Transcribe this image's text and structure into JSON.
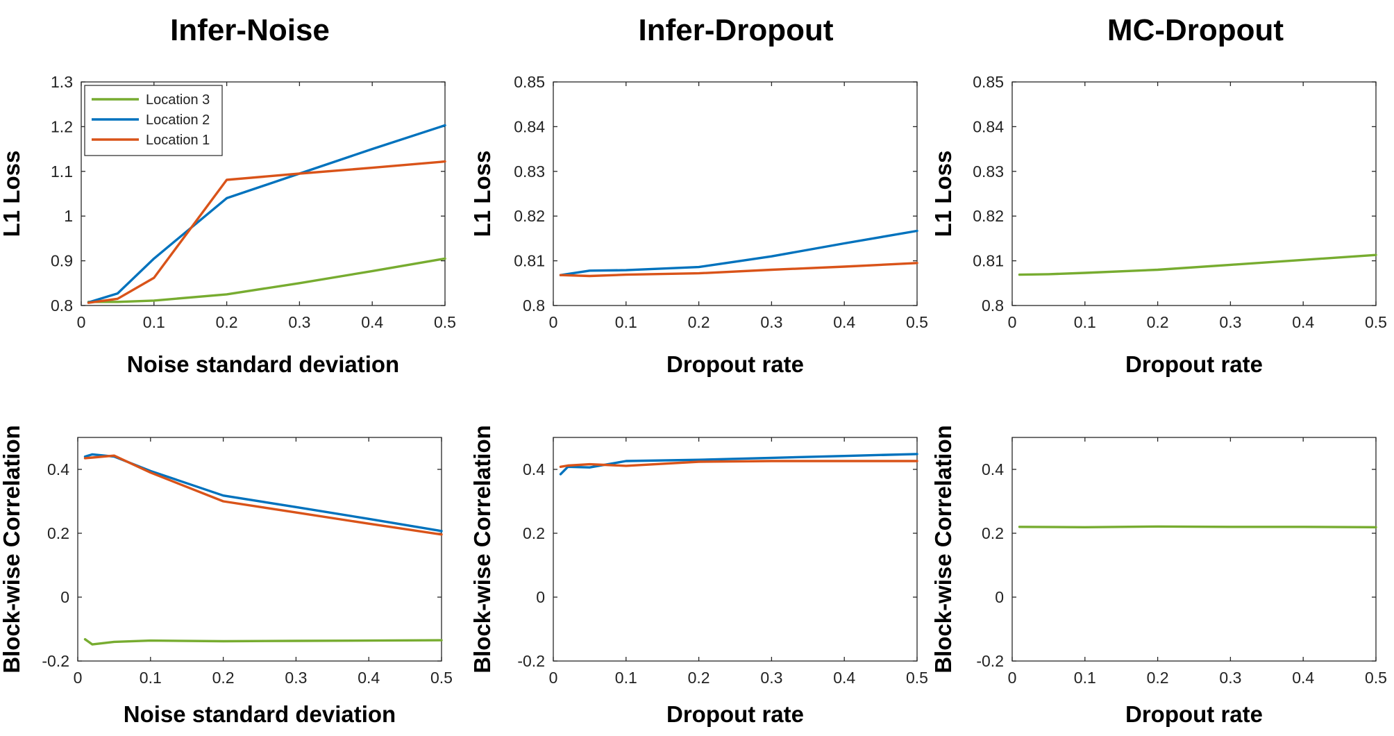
{
  "colors": {
    "Location 3": "#77AC30",
    "Location 2": "#0072BD",
    "Location 1": "#D95319"
  },
  "chart_data": [
    {
      "type": "line",
      "column_title": "Infer-Noise",
      "title": "",
      "xlabel": "Noise standard deviation",
      "ylabel": "L1 Loss",
      "xlim": [
        0,
        0.5
      ],
      "ylim": [
        0.8,
        1.3
      ],
      "xticks": [
        0,
        0.1,
        0.2,
        0.3,
        0.4,
        0.5
      ],
      "xtick_labels": [
        "0",
        "0.1",
        "0.2",
        "0.3",
        "0.4",
        "0.5"
      ],
      "yticks": [
        0.8,
        0.9,
        1,
        1.1,
        1.2,
        1.3
      ],
      "ytick_labels": [
        "0.8",
        "0.9",
        "1",
        "1.1",
        "1.2",
        "1.3"
      ],
      "legend": {
        "placement": "top-left",
        "entries": [
          "Location 3",
          "Location 2",
          "Location 1"
        ]
      },
      "series": [
        {
          "name": "Location 3",
          "x": [
            0.01,
            0.05,
            0.1,
            0.2,
            0.3,
            0.4,
            0.5
          ],
          "y": [
            0.808,
            0.808,
            0.811,
            0.825,
            0.85,
            0.877,
            0.905
          ]
        },
        {
          "name": "Location 2",
          "x": [
            0.01,
            0.05,
            0.1,
            0.2,
            0.3,
            0.4,
            0.5
          ],
          "y": [
            0.807,
            0.827,
            0.905,
            1.04,
            1.095,
            1.15,
            1.203
          ]
        },
        {
          "name": "Location 1",
          "x": [
            0.01,
            0.05,
            0.1,
            0.2,
            0.3,
            0.4,
            0.5
          ],
          "y": [
            0.806,
            0.815,
            0.862,
            1.081,
            1.095,
            1.108,
            1.122
          ]
        }
      ]
    },
    {
      "type": "line",
      "column_title": "Infer-Dropout",
      "title": "",
      "xlabel": "Dropout rate",
      "ylabel": "L1 Loss",
      "xlim": [
        0,
        0.5
      ],
      "ylim": [
        0.8,
        0.85
      ],
      "xticks": [
        0,
        0.1,
        0.2,
        0.3,
        0.4,
        0.5
      ],
      "xtick_labels": [
        "0",
        "0.1",
        "0.2",
        "0.3",
        "0.4",
        "0.5"
      ],
      "yticks": [
        0.8,
        0.81,
        0.82,
        0.83,
        0.84,
        0.85
      ],
      "ytick_labels": [
        "0.8",
        "0.81",
        "0.82",
        "0.83",
        "0.84",
        "0.85"
      ],
      "series": [
        {
          "name": "Location 2",
          "x": [
            0.01,
            0.05,
            0.1,
            0.2,
            0.3,
            0.4,
            0.5
          ],
          "y": [
            0.8068,
            0.8078,
            0.8079,
            0.8086,
            0.811,
            0.8139,
            0.8167
          ]
        },
        {
          "name": "Location 1",
          "x": [
            0.01,
            0.05,
            0.1,
            0.2,
            0.3,
            0.4,
            0.5
          ],
          "y": [
            0.8068,
            0.8066,
            0.8069,
            0.8072,
            0.808,
            0.8087,
            0.8095
          ]
        }
      ]
    },
    {
      "type": "line",
      "column_title": "MC-Dropout",
      "title": "",
      "xlabel": "Dropout rate",
      "ylabel": "L1 Loss",
      "xlim": [
        0,
        0.5
      ],
      "ylim": [
        0.8,
        0.85
      ],
      "xticks": [
        0,
        0.1,
        0.2,
        0.3,
        0.4,
        0.5
      ],
      "xtick_labels": [
        "0",
        "0.1",
        "0.2",
        "0.3",
        "0.4",
        "0.5"
      ],
      "yticks": [
        0.8,
        0.81,
        0.82,
        0.83,
        0.84,
        0.85
      ],
      "ytick_labels": [
        "0.8",
        "0.81",
        "0.82",
        "0.83",
        "0.84",
        "0.85"
      ],
      "series": [
        {
          "name": "Location 3",
          "x": [
            0.01,
            0.05,
            0.1,
            0.2,
            0.3,
            0.4,
            0.5
          ],
          "y": [
            0.8069,
            0.807,
            0.8073,
            0.808,
            0.8091,
            0.8102,
            0.8113
          ]
        }
      ]
    },
    {
      "type": "line",
      "column_title": "",
      "title": "",
      "xlabel": "Noise standard deviation",
      "ylabel": "Block-wise Correlation",
      "xlim": [
        0,
        0.5
      ],
      "ylim": [
        -0.2,
        0.5
      ],
      "xticks": [
        0,
        0.1,
        0.2,
        0.3,
        0.4,
        0.5
      ],
      "xtick_labels": [
        "0",
        "0.1",
        "0.2",
        "0.3",
        "0.4",
        "0.5"
      ],
      "yticks": [
        -0.2,
        0,
        0.2,
        0.4
      ],
      "ytick_labels": [
        "-0.2",
        "0",
        "0.2",
        "0.4"
      ],
      "series": [
        {
          "name": "Location 3",
          "x": [
            0.01,
            0.02,
            0.05,
            0.1,
            0.2,
            0.3,
            0.4,
            0.5
          ],
          "y": [
            -0.132,
            -0.148,
            -0.14,
            -0.136,
            -0.138,
            -0.137,
            -0.136,
            -0.135
          ]
        },
        {
          "name": "Location 2",
          "x": [
            0.01,
            0.02,
            0.05,
            0.1,
            0.2,
            0.3,
            0.4,
            0.5
          ],
          "y": [
            0.44,
            0.447,
            0.44,
            0.395,
            0.318,
            0.282,
            0.245,
            0.207
          ]
        },
        {
          "name": "Location 1",
          "x": [
            0.01,
            0.02,
            0.05,
            0.1,
            0.2,
            0.3,
            0.4,
            0.5
          ],
          "y": [
            0.435,
            0.437,
            0.443,
            0.39,
            0.3,
            0.265,
            0.23,
            0.196
          ]
        }
      ]
    },
    {
      "type": "line",
      "column_title": "",
      "title": "",
      "xlabel": "Dropout rate",
      "ylabel": "Block-wise Correlation",
      "xlim": [
        0,
        0.5
      ],
      "ylim": [
        -0.2,
        0.5
      ],
      "xticks": [
        0,
        0.1,
        0.2,
        0.3,
        0.4,
        0.5
      ],
      "xtick_labels": [
        "0",
        "0.1",
        "0.2",
        "0.3",
        "0.4",
        "0.5"
      ],
      "yticks": [
        -0.2,
        0,
        0.2,
        0.4
      ],
      "ytick_labels": [
        "-0.2",
        "0",
        "0.2",
        "0.4"
      ],
      "series": [
        {
          "name": "Location 2",
          "x": [
            0.01,
            0.02,
            0.05,
            0.1,
            0.2,
            0.3,
            0.4,
            0.5
          ],
          "y": [
            0.385,
            0.408,
            0.406,
            0.426,
            0.43,
            0.436,
            0.442,
            0.448
          ]
        },
        {
          "name": "Location 1",
          "x": [
            0.01,
            0.02,
            0.05,
            0.1,
            0.2,
            0.3,
            0.4,
            0.5
          ],
          "y": [
            0.408,
            0.412,
            0.416,
            0.411,
            0.424,
            0.426,
            0.426,
            0.426
          ]
        }
      ]
    },
    {
      "type": "line",
      "column_title": "",
      "title": "",
      "xlabel": "Dropout rate",
      "ylabel": "Block-wise Correlation",
      "xlim": [
        0,
        0.5
      ],
      "ylim": [
        -0.2,
        0.5
      ],
      "xticks": [
        0,
        0.1,
        0.2,
        0.3,
        0.4,
        0.5
      ],
      "xtick_labels": [
        "0",
        "0.1",
        "0.2",
        "0.3",
        "0.4",
        "0.5"
      ],
      "yticks": [
        -0.2,
        0,
        0.2,
        0.4
      ],
      "ytick_labels": [
        "-0.2",
        "0",
        "0.2",
        "0.4"
      ],
      "series": [
        {
          "name": "Location 3",
          "x": [
            0.01,
            0.1,
            0.2,
            0.3,
            0.4,
            0.5
          ],
          "y": [
            0.22,
            0.219,
            0.221,
            0.22,
            0.22,
            0.219
          ]
        }
      ]
    }
  ]
}
